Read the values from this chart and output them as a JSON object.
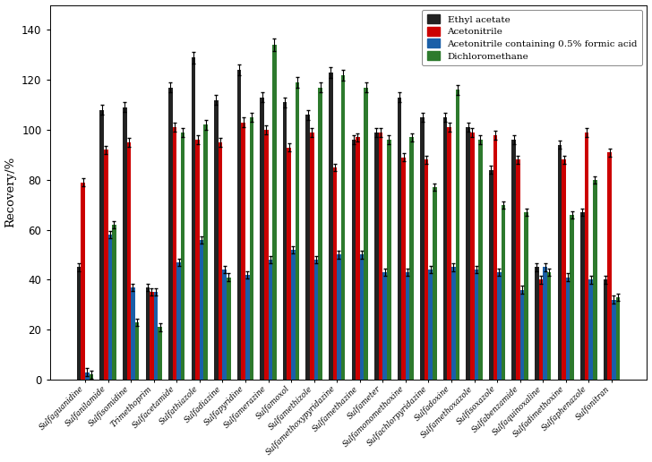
{
  "categories": [
    "Sulfaguanidine",
    "Sulfanilamide",
    "Sulfisomidine",
    "Trimethoprim",
    "Sulfacetamide",
    "Sulfathiazole",
    "Sulfadiazine",
    "Sulfapyridine",
    "Sulfamerazine",
    "Sulfamoxol",
    "Sulfamethizole",
    "Sulfamethoxypyridazine",
    "Sulfamethazine",
    "Sulfameter",
    "Sulfamonomethoxine",
    "Sulfachlorpyridazine",
    "Sulfadoxine",
    "Sulfamethoxazole",
    "Sulfisoxazole",
    "Sulfabenzamide",
    "Sulfaquinoxaline",
    "Sulfadimethoxine",
    "Sulfaphenazole",
    "Sulfonitran"
  ],
  "series": {
    "Ethyl acetate": [
      45,
      108,
      109,
      37,
      117,
      129,
      112,
      124,
      113,
      111,
      106,
      123,
      96,
      99,
      113,
      105,
      105,
      101,
      84,
      96,
      45,
      94,
      67,
      40
    ],
    "Acetonitrile": [
      79,
      92,
      95,
      35,
      101,
      96,
      95,
      103,
      100,
      93,
      99,
      85,
      97,
      99,
      89,
      88,
      101,
      99,
      98,
      88,
      40,
      88,
      99,
      91
    ],
    "Acetonitrile containing 0.5% formic acid": [
      3,
      58,
      37,
      35,
      47,
      56,
      44,
      42,
      48,
      52,
      48,
      50,
      50,
      43,
      43,
      44,
      45,
      44,
      43,
      36,
      45,
      41,
      40,
      32
    ],
    "Dichloromethane": [
      2,
      62,
      23,
      21,
      99,
      102,
      41,
      105,
      134,
      119,
      117,
      122,
      117,
      96,
      97,
      77,
      116,
      96,
      70,
      67,
      43,
      66,
      80,
      33
    ]
  },
  "colors": {
    "Ethyl acetate": "#222222",
    "Acetonitrile": "#cc0000",
    "Acetonitrile containing 0.5% formic acid": "#1a5fa8",
    "Dichloromethane": "#2d7a2d"
  },
  "ylabel": "Recovery/%",
  "ylim": [
    0,
    150
  ],
  "yticks": [
    0,
    20,
    40,
    60,
    80,
    100,
    120,
    140
  ],
  "bar_width": 0.18,
  "figsize": [
    7.28,
    5.16
  ],
  "dpi": 100
}
